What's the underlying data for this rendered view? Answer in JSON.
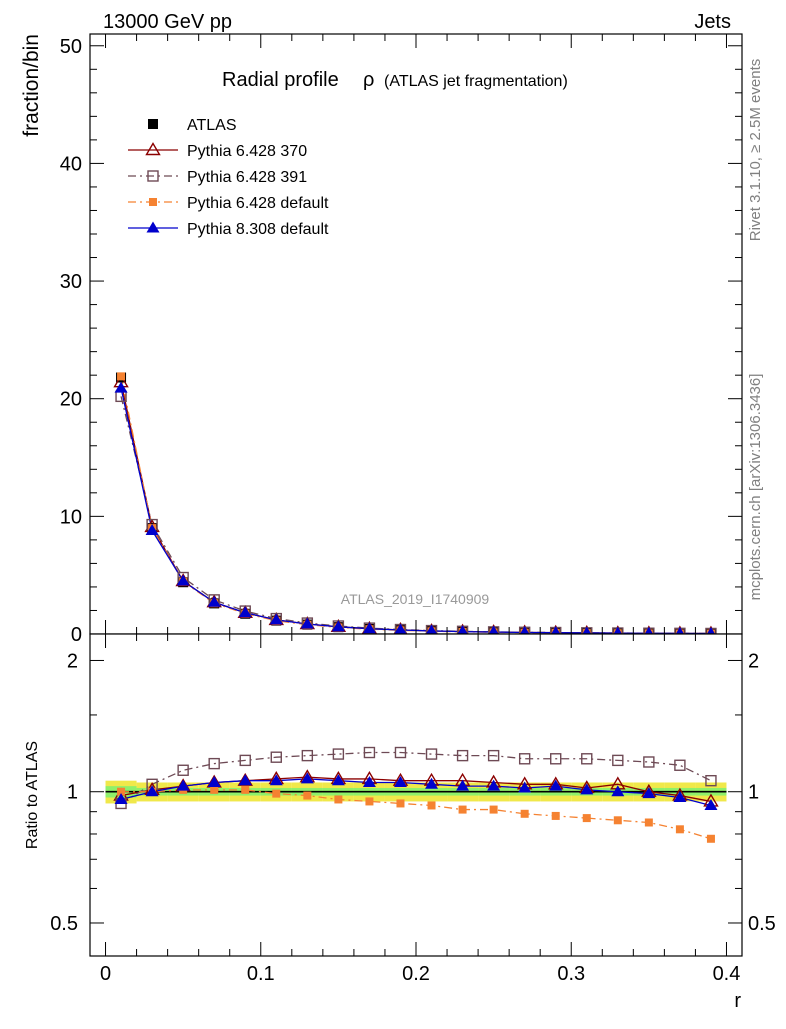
{
  "header": {
    "left": "13000 GeV pp",
    "right": "Jets"
  },
  "side_labels": {
    "rivet": "Rivet 3.1.10, ≥ 2.5M events",
    "mcplots": "mcplots.cern.ch [arXiv:1306.3436]"
  },
  "watermark": "ATLAS_2019_I1740909",
  "chart_data": [
    {
      "type": "line",
      "panel": "main",
      "title": "Radial profile",
      "title_symbol": "ρ",
      "subtitle": "(ATLAS jet fragmentation)",
      "xlabel": "r",
      "ylabel": "fraction/bin",
      "xlim": [
        -0.01,
        0.41
      ],
      "ylim": [
        0,
        51
      ],
      "yticks": [
        0,
        10,
        20,
        30,
        40,
        50
      ],
      "legend_position": "top-left",
      "x": [
        0.01,
        0.03,
        0.05,
        0.07,
        0.09,
        0.11,
        0.13,
        0.15,
        0.17,
        0.19,
        0.21,
        0.23,
        0.25,
        0.27,
        0.29,
        0.31,
        0.33,
        0.35,
        0.37,
        0.39
      ],
      "series": [
        {
          "name": "ATLAS",
          "color": "#000000",
          "marker": "square-filled",
          "line": "none",
          "values": [
            21.8,
            9.0,
            4.4,
            2.6,
            1.72,
            1.14,
            0.8,
            0.58,
            0.43,
            0.33,
            0.25,
            0.2,
            0.16,
            0.13,
            0.11,
            0.09,
            0.075,
            0.062,
            0.052,
            0.043
          ]
        },
        {
          "name": "Pythia 6.428 370",
          "color": "#8b0000",
          "marker": "triangle-open",
          "line": "solid",
          "values": [
            21.4,
            9.1,
            4.5,
            2.7,
            1.8,
            1.2,
            0.85,
            0.61,
            0.45,
            0.35,
            0.26,
            0.21,
            0.17,
            0.135,
            0.115,
            0.092,
            0.078,
            0.063,
            0.052,
            0.041
          ]
        },
        {
          "name": "Pythia 6.428 391",
          "color": "#6e4a55",
          "marker": "square-open",
          "line": "dashdot",
          "values": [
            20.2,
            9.3,
            4.8,
            2.9,
            1.95,
            1.31,
            0.93,
            0.68,
            0.5,
            0.38,
            0.29,
            0.23,
            0.18,
            0.145,
            0.125,
            0.1,
            0.083,
            0.068,
            0.057,
            0.046
          ]
        },
        {
          "name": "Pythia 6.428 default",
          "color": "#f58231",
          "marker": "square-filled-small",
          "line": "dashdot",
          "values": [
            21.9,
            9.0,
            4.45,
            2.62,
            1.74,
            1.13,
            0.79,
            0.56,
            0.41,
            0.31,
            0.23,
            0.18,
            0.145,
            0.115,
            0.095,
            0.078,
            0.064,
            0.053,
            0.043,
            0.034
          ]
        },
        {
          "name": "Pythia 8.308 default",
          "color": "#0000cc",
          "marker": "triangle-filled",
          "line": "solid",
          "values": [
            20.9,
            8.8,
            4.5,
            2.7,
            1.81,
            1.2,
            0.85,
            0.61,
            0.45,
            0.34,
            0.26,
            0.2,
            0.165,
            0.13,
            0.113,
            0.09,
            0.074,
            0.061,
            0.05,
            0.04
          ]
        }
      ]
    },
    {
      "type": "line",
      "panel": "ratio",
      "xlabel": "r",
      "ylabel": "Ratio to ATLAS",
      "xlim": [
        -0.01,
        0.41
      ],
      "ylim": [
        0.42,
        2.3
      ],
      "log_y": true,
      "yticks": [
        0.5,
        1,
        2
      ],
      "xticks": [
        0,
        0.1,
        0.2,
        0.3,
        0.4
      ],
      "reference": 1,
      "band_colors": {
        "outer": "#f0e84a",
        "inner": "#8ff06a"
      },
      "x": [
        0.01,
        0.03,
        0.05,
        0.07,
        0.09,
        0.11,
        0.13,
        0.15,
        0.17,
        0.19,
        0.21,
        0.23,
        0.25,
        0.27,
        0.29,
        0.31,
        0.33,
        0.35,
        0.37,
        0.39
      ],
      "band_outer": [
        0.06,
        0.05,
        0.05,
        0.05,
        0.05,
        0.05,
        0.05,
        0.05,
        0.05,
        0.05,
        0.05,
        0.05,
        0.05,
        0.05,
        0.05,
        0.05,
        0.05,
        0.05,
        0.05,
        0.05
      ],
      "band_inner": [
        0.03,
        0.02,
        0.02,
        0.02,
        0.02,
        0.02,
        0.02,
        0.02,
        0.02,
        0.02,
        0.02,
        0.02,
        0.02,
        0.02,
        0.02,
        0.02,
        0.02,
        0.02,
        0.02,
        0.02
      ],
      "series": [
        {
          "name": "Pythia 6.428 370",
          "color": "#8b0000",
          "marker": "triangle-open",
          "line": "solid",
          "values": [
            0.98,
            1.01,
            1.03,
            1.05,
            1.06,
            1.07,
            1.08,
            1.07,
            1.07,
            1.06,
            1.06,
            1.06,
            1.05,
            1.04,
            1.04,
            1.02,
            1.04,
            1.0,
            0.98,
            0.95
          ]
        },
        {
          "name": "Pythia 6.428 391",
          "color": "#6e4a55",
          "marker": "square-open",
          "line": "dashdot",
          "values": [
            0.94,
            1.04,
            1.12,
            1.16,
            1.18,
            1.2,
            1.21,
            1.22,
            1.23,
            1.23,
            1.22,
            1.21,
            1.21,
            1.19,
            1.19,
            1.19,
            1.18,
            1.17,
            1.15,
            1.06
          ]
        },
        {
          "name": "Pythia 6.428 default",
          "color": "#f58231",
          "marker": "square-filled-small",
          "line": "dashdot",
          "values": [
            1.0,
            1.0,
            1.01,
            1.01,
            1.01,
            0.99,
            0.98,
            0.96,
            0.95,
            0.94,
            0.93,
            0.91,
            0.91,
            0.89,
            0.88,
            0.87,
            0.86,
            0.85,
            0.82,
            0.78
          ]
        },
        {
          "name": "Pythia 8.308 default",
          "color": "#0000cc",
          "marker": "triangle-filled",
          "line": "solid",
          "values": [
            0.96,
            1.0,
            1.03,
            1.05,
            1.06,
            1.06,
            1.07,
            1.06,
            1.05,
            1.05,
            1.04,
            1.03,
            1.03,
            1.02,
            1.03,
            1.01,
            1.0,
            0.99,
            0.97,
            0.93
          ]
        }
      ]
    }
  ]
}
